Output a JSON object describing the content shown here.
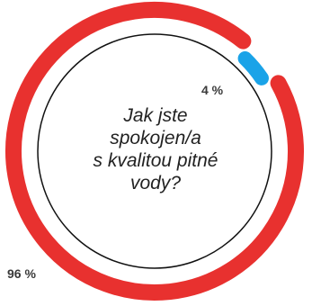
{
  "chart_data": {
    "type": "pie",
    "style": "donut",
    "title": "",
    "center_text_lines": [
      "Jak jste",
      "spokojen/a",
      "s kvalitou pitné",
      "vody?"
    ],
    "slices": [
      {
        "label": "96 %",
        "value": 96,
        "color": "#e8312f"
      },
      {
        "label": "4 %",
        "value": 4,
        "color": "#1aa3e8"
      }
    ],
    "inner_ring_color": "#111111"
  }
}
